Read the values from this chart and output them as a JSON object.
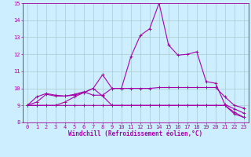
{
  "xlabel": "Windchill (Refroidissement éolien,°C)",
  "bg_color": "#cceeff",
  "line_color": "#aa00aa",
  "grid_color": "#aacccc",
  "xlim": [
    -0.5,
    23.5
  ],
  "ylim": [
    8.0,
    15.0
  ],
  "xticks": [
    0,
    1,
    2,
    3,
    4,
    5,
    6,
    7,
    8,
    9,
    10,
    11,
    12,
    13,
    14,
    15,
    16,
    17,
    18,
    19,
    20,
    21,
    22,
    23
  ],
  "yticks": [
    8,
    9,
    10,
    11,
    12,
    13,
    14,
    15
  ],
  "lines": [
    {
      "x": [
        0,
        1,
        2,
        3,
        4,
        5,
        6,
        7,
        8,
        9,
        10,
        11,
        12,
        13,
        14,
        15,
        16,
        17,
        18,
        19,
        20,
        21,
        22,
        23
      ],
      "y": [
        9.0,
        9.2,
        9.65,
        9.55,
        9.55,
        9.6,
        9.75,
        10.0,
        10.8,
        10.0,
        10.0,
        11.85,
        13.1,
        13.5,
        15.0,
        12.55,
        11.95,
        12.0,
        12.15,
        10.4,
        10.3,
        9.05,
        8.8,
        8.55
      ]
    },
    {
      "x": [
        0,
        1,
        2,
        3,
        4,
        5,
        6,
        7,
        8,
        9,
        10,
        11,
        12,
        13,
        14,
        15,
        16,
        17,
        18,
        19,
        20,
        21,
        22,
        23
      ],
      "y": [
        9.0,
        9.5,
        9.7,
        9.6,
        9.55,
        9.65,
        9.8,
        9.6,
        9.6,
        10.0,
        10.0,
        10.0,
        10.0,
        10.0,
        10.05,
        10.05,
        10.05,
        10.05,
        10.05,
        10.05,
        10.05,
        9.5,
        9.0,
        8.85
      ]
    },
    {
      "x": [
        0,
        1,
        2,
        3,
        4,
        5,
        6,
        7,
        8,
        9,
        10,
        11,
        12,
        13,
        14,
        15,
        16,
        17,
        18,
        19,
        20,
        21,
        22,
        23
      ],
      "y": [
        9.0,
        9.0,
        9.0,
        9.0,
        9.2,
        9.5,
        9.75,
        10.0,
        9.55,
        9.0,
        9.0,
        9.0,
        9.0,
        9.0,
        9.0,
        9.0,
        9.0,
        9.0,
        9.0,
        9.0,
        9.0,
        9.0,
        8.6,
        8.3
      ]
    },
    {
      "x": [
        0,
        1,
        2,
        3,
        4,
        5,
        6,
        7,
        8,
        9,
        10,
        11,
        12,
        13,
        14,
        15,
        16,
        17,
        18,
        19,
        20,
        21,
        22,
        23
      ],
      "y": [
        9.0,
        9.0,
        9.0,
        9.0,
        9.0,
        9.0,
        9.0,
        9.0,
        9.0,
        9.0,
        9.0,
        9.0,
        9.0,
        9.0,
        9.0,
        9.0,
        9.0,
        9.0,
        9.0,
        9.0,
        9.0,
        9.0,
        8.5,
        8.3
      ]
    }
  ],
  "title_fontsize": 5.5,
  "tick_fontsize": 5.0,
  "xlabel_fontsize": 5.5
}
